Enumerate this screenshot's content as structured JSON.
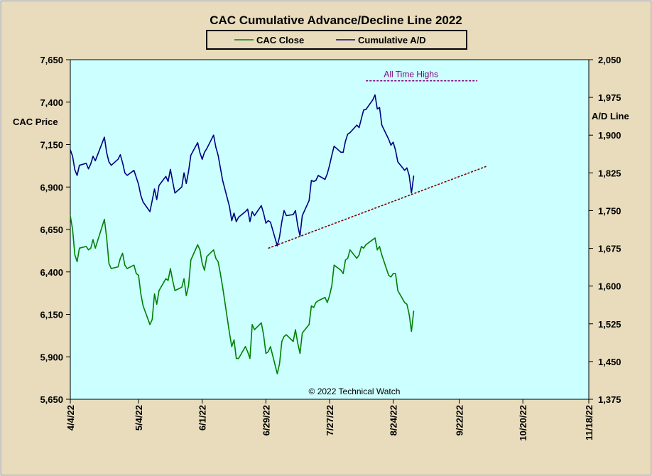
{
  "chart_data": {
    "type": "line",
    "title": "CAC Cumulative  Advance/Decline  Line 2022",
    "ylabel_left": "CAC Price",
    "ylabel_right": "A/D Line",
    "y_left": {
      "min": 5650,
      "max": 7650,
      "ticks": [
        "5,650",
        "5,900",
        "6,150",
        "6,400",
        "6,650",
        "6,900",
        "7,150",
        "7,400",
        "7,650"
      ]
    },
    "y_right": {
      "min": 1375,
      "max": 2050,
      "ticks": [
        "1,375",
        "1,450",
        "1,525",
        "1,600",
        "1,675",
        "1,750",
        "1,825",
        "1,900",
        "1,975",
        "2,050"
      ]
    },
    "x_axis": {
      "start": "2022-04-04",
      "end": "2022-11-18",
      "ticks": [
        {
          "date": "2022-04-04",
          "label": "4/4/22"
        },
        {
          "date": "2022-05-04",
          "label": "5/4/22"
        },
        {
          "date": "2022-06-01",
          "label": "6/1/22"
        },
        {
          "date": "2022-06-29",
          "label": "6/29/22"
        },
        {
          "date": "2022-07-27",
          "label": "7/27/22"
        },
        {
          "date": "2022-08-24",
          "label": "8/24/22"
        },
        {
          "date": "2022-09-22",
          "label": "9/22/22"
        },
        {
          "date": "2022-10-20",
          "label": "10/20/22"
        },
        {
          "date": "2022-11-18",
          "label": "11/18/22"
        }
      ]
    },
    "legend": {
      "placement": "top-center",
      "entries": [
        "CAC Close",
        "Cumulative A/D"
      ]
    },
    "series": [
      {
        "name": "CAC Close",
        "axis": "left",
        "color": "#008000",
        "points": [
          [
            "2022-04-04",
            6730
          ],
          [
            "2022-04-05",
            6650
          ],
          [
            "2022-04-06",
            6500
          ],
          [
            "2022-04-07",
            6460
          ],
          [
            "2022-04-08",
            6540
          ],
          [
            "2022-04-11",
            6550
          ],
          [
            "2022-04-12",
            6530
          ],
          [
            "2022-04-13",
            6540
          ],
          [
            "2022-04-14",
            6590
          ],
          [
            "2022-04-15",
            6540
          ],
          [
            "2022-04-19",
            6710
          ],
          [
            "2022-04-20",
            6600
          ],
          [
            "2022-04-21",
            6450
          ],
          [
            "2022-04-22",
            6420
          ],
          [
            "2022-04-25",
            6430
          ],
          [
            "2022-04-26",
            6480
          ],
          [
            "2022-04-27",
            6510
          ],
          [
            "2022-04-28",
            6440
          ],
          [
            "2022-04-29",
            6420
          ],
          [
            "2022-05-02",
            6440
          ],
          [
            "2022-05-03",
            6390
          ],
          [
            "2022-05-04",
            6380
          ],
          [
            "2022-05-05",
            6270
          ],
          [
            "2022-05-06",
            6200
          ],
          [
            "2022-05-09",
            6090
          ],
          [
            "2022-05-10",
            6120
          ],
          [
            "2022-05-11",
            6270
          ],
          [
            "2022-05-12",
            6210
          ],
          [
            "2022-05-13",
            6290
          ],
          [
            "2022-05-16",
            6360
          ],
          [
            "2022-05-17",
            6350
          ],
          [
            "2022-05-18",
            6420
          ],
          [
            "2022-05-19",
            6350
          ],
          [
            "2022-05-20",
            6290
          ],
          [
            "2022-05-23",
            6310
          ],
          [
            "2022-05-24",
            6360
          ],
          [
            "2022-05-25",
            6260
          ],
          [
            "2022-05-26",
            6320
          ],
          [
            "2022-05-27",
            6470
          ],
          [
            "2022-05-30",
            6560
          ],
          [
            "2022-05-31",
            6530
          ],
          [
            "2022-06-01",
            6450
          ],
          [
            "2022-06-02",
            6410
          ],
          [
            "2022-06-03",
            6490
          ],
          [
            "2022-06-06",
            6530
          ],
          [
            "2022-06-07",
            6480
          ],
          [
            "2022-06-08",
            6460
          ],
          [
            "2022-06-09",
            6390
          ],
          [
            "2022-06-10",
            6310
          ],
          [
            "2022-06-13",
            6040
          ],
          [
            "2022-06-14",
            5960
          ],
          [
            "2022-06-15",
            6000
          ],
          [
            "2022-06-16",
            5890
          ],
          [
            "2022-06-17",
            5890
          ],
          [
            "2022-06-20",
            5960
          ],
          [
            "2022-06-21",
            5930
          ],
          [
            "2022-06-22",
            5890
          ],
          [
            "2022-06-23",
            6090
          ],
          [
            "2022-06-24",
            6060
          ],
          [
            "2022-06-27",
            6100
          ],
          [
            "2022-06-28",
            6030
          ],
          [
            "2022-06-29",
            5920
          ],
          [
            "2022-06-30",
            5930
          ],
          [
            "2022-07-01",
            5960
          ],
          [
            "2022-07-04",
            5800
          ],
          [
            "2022-07-05",
            5860
          ],
          [
            "2022-07-06",
            5990
          ],
          [
            "2022-07-07",
            6020
          ],
          [
            "2022-07-08",
            6030
          ],
          [
            "2022-07-11",
            5990
          ],
          [
            "2022-07-12",
            6060
          ],
          [
            "2022-07-13",
            5980
          ],
          [
            "2022-07-14",
            5920
          ],
          [
            "2022-07-15",
            6040
          ],
          [
            "2022-07-18",
            6090
          ],
          [
            "2022-07-19",
            6200
          ],
          [
            "2022-07-20",
            6190
          ],
          [
            "2022-07-21",
            6220
          ],
          [
            "2022-07-22",
            6230
          ],
          [
            "2022-07-25",
            6250
          ],
          [
            "2022-07-26",
            6220
          ],
          [
            "2022-07-27",
            6260
          ],
          [
            "2022-07-28",
            6320
          ],
          [
            "2022-07-29",
            6440
          ],
          [
            "2022-08-01",
            6410
          ],
          [
            "2022-08-02",
            6390
          ],
          [
            "2022-08-03",
            6470
          ],
          [
            "2022-08-04",
            6480
          ],
          [
            "2022-08-05",
            6530
          ],
          [
            "2022-08-08",
            6480
          ],
          [
            "2022-08-09",
            6500
          ],
          [
            "2022-08-10",
            6550
          ],
          [
            "2022-08-11",
            6540
          ],
          [
            "2022-08-12",
            6560
          ],
          [
            "2022-08-15",
            6590
          ],
          [
            "2022-08-16",
            6600
          ],
          [
            "2022-08-17",
            6530
          ],
          [
            "2022-08-18",
            6550
          ],
          [
            "2022-08-19",
            6500
          ],
          [
            "2022-08-22",
            6380
          ],
          [
            "2022-08-23",
            6370
          ],
          [
            "2022-08-24",
            6390
          ],
          [
            "2022-08-25",
            6390
          ],
          [
            "2022-08-26",
            6290
          ],
          [
            "2022-08-29",
            6220
          ],
          [
            "2022-08-30",
            6210
          ],
          [
            "2022-08-31",
            6150
          ],
          [
            "2022-09-01",
            6050
          ],
          [
            "2022-09-02",
            6170
          ]
        ]
      },
      {
        "name": "Cumulative A/D",
        "axis": "right",
        "color": "#000080",
        "points": [
          [
            "2022-04-04",
            1871
          ],
          [
            "2022-04-05",
            1858
          ],
          [
            "2022-04-06",
            1831
          ],
          [
            "2022-04-07",
            1820
          ],
          [
            "2022-04-08",
            1840
          ],
          [
            "2022-04-11",
            1844
          ],
          [
            "2022-04-12",
            1833
          ],
          [
            "2022-04-13",
            1843
          ],
          [
            "2022-04-14",
            1858
          ],
          [
            "2022-04-15",
            1849
          ],
          [
            "2022-04-19",
            1896
          ],
          [
            "2022-04-20",
            1865
          ],
          [
            "2022-04-21",
            1847
          ],
          [
            "2022-04-22",
            1840
          ],
          [
            "2022-04-25",
            1852
          ],
          [
            "2022-04-26",
            1861
          ],
          [
            "2022-04-27",
            1845
          ],
          [
            "2022-04-28",
            1825
          ],
          [
            "2022-04-29",
            1820
          ],
          [
            "2022-05-02",
            1830
          ],
          [
            "2022-05-03",
            1816
          ],
          [
            "2022-05-04",
            1802
          ],
          [
            "2022-05-05",
            1780
          ],
          [
            "2022-05-06",
            1767
          ],
          [
            "2022-05-09",
            1748
          ],
          [
            "2022-05-10",
            1770
          ],
          [
            "2022-05-11",
            1793
          ],
          [
            "2022-05-12",
            1772
          ],
          [
            "2022-05-13",
            1800
          ],
          [
            "2022-05-16",
            1818
          ],
          [
            "2022-05-17",
            1808
          ],
          [
            "2022-05-18",
            1832
          ],
          [
            "2022-05-19",
            1808
          ],
          [
            "2022-05-20",
            1785
          ],
          [
            "2022-05-23",
            1797
          ],
          [
            "2022-05-24",
            1825
          ],
          [
            "2022-05-25",
            1804
          ],
          [
            "2022-05-26",
            1828
          ],
          [
            "2022-05-27",
            1860
          ],
          [
            "2022-05-30",
            1885
          ],
          [
            "2022-05-31",
            1865
          ],
          [
            "2022-06-01",
            1852
          ],
          [
            "2022-06-02",
            1866
          ],
          [
            "2022-06-03",
            1873
          ],
          [
            "2022-06-06",
            1900
          ],
          [
            "2022-06-07",
            1876
          ],
          [
            "2022-06-08",
            1860
          ],
          [
            "2022-06-09",
            1835
          ],
          [
            "2022-06-10",
            1810
          ],
          [
            "2022-06-13",
            1758
          ],
          [
            "2022-06-14",
            1730
          ],
          [
            "2022-06-15",
            1745
          ],
          [
            "2022-06-16",
            1728
          ],
          [
            "2022-06-17",
            1737
          ],
          [
            "2022-06-20",
            1748
          ],
          [
            "2022-06-21",
            1753
          ],
          [
            "2022-06-22",
            1728
          ],
          [
            "2022-06-23",
            1748
          ],
          [
            "2022-06-24",
            1740
          ],
          [
            "2022-06-27",
            1760
          ],
          [
            "2022-06-28",
            1745
          ],
          [
            "2022-06-29",
            1725
          ],
          [
            "2022-06-30",
            1730
          ],
          [
            "2022-07-01",
            1727
          ],
          [
            "2022-07-04",
            1680
          ],
          [
            "2022-07-05",
            1698
          ],
          [
            "2022-07-06",
            1728
          ],
          [
            "2022-07-07",
            1750
          ],
          [
            "2022-07-08",
            1740
          ],
          [
            "2022-07-11",
            1742
          ],
          [
            "2022-07-12",
            1750
          ],
          [
            "2022-07-13",
            1720
          ],
          [
            "2022-07-14",
            1700
          ],
          [
            "2022-07-15",
            1740
          ],
          [
            "2022-07-18",
            1770
          ],
          [
            "2022-07-19",
            1810
          ],
          [
            "2022-07-20",
            1808
          ],
          [
            "2022-07-21",
            1810
          ],
          [
            "2022-07-22",
            1820
          ],
          [
            "2022-07-25",
            1812
          ],
          [
            "2022-07-26",
            1823
          ],
          [
            "2022-07-27",
            1840
          ],
          [
            "2022-07-28",
            1860
          ],
          [
            "2022-07-29",
            1878
          ],
          [
            "2022-08-01",
            1866
          ],
          [
            "2022-08-02",
            1866
          ],
          [
            "2022-08-03",
            1888
          ],
          [
            "2022-08-04",
            1902
          ],
          [
            "2022-08-05",
            1905
          ],
          [
            "2022-08-08",
            1920
          ],
          [
            "2022-08-09",
            1915
          ],
          [
            "2022-08-10",
            1933
          ],
          [
            "2022-08-11",
            1950
          ],
          [
            "2022-08-12",
            1951
          ],
          [
            "2022-08-15",
            1970
          ],
          [
            "2022-08-16",
            1980
          ],
          [
            "2022-08-17",
            1952
          ],
          [
            "2022-08-18",
            1955
          ],
          [
            "2022-08-19",
            1920
          ],
          [
            "2022-08-22",
            1892
          ],
          [
            "2022-08-23",
            1880
          ],
          [
            "2022-08-24",
            1886
          ],
          [
            "2022-08-25",
            1870
          ],
          [
            "2022-08-26",
            1847
          ],
          [
            "2022-08-29",
            1830
          ],
          [
            "2022-08-30",
            1835
          ],
          [
            "2022-08-31",
            1820
          ],
          [
            "2022-09-01",
            1785
          ],
          [
            "2022-09-02",
            1819
          ]
        ]
      }
    ],
    "annotations": {
      "all_time_highs": {
        "label": "All Time Highs",
        "value": 2008,
        "axis": "right",
        "x_from": "2022-08-12",
        "x_to": "2022-09-30",
        "color": "#800080"
      },
      "trend_line": {
        "axis": "right",
        "color": "#800000",
        "from": [
          "2022-06-30",
          1675
        ],
        "to": [
          "2022-10-04",
          1838
        ]
      },
      "copyright": "© 2022 Technical  Watch"
    },
    "colors": {
      "plot_bg": "#ccffff",
      "frame_bg": "#e8dcbc"
    }
  }
}
